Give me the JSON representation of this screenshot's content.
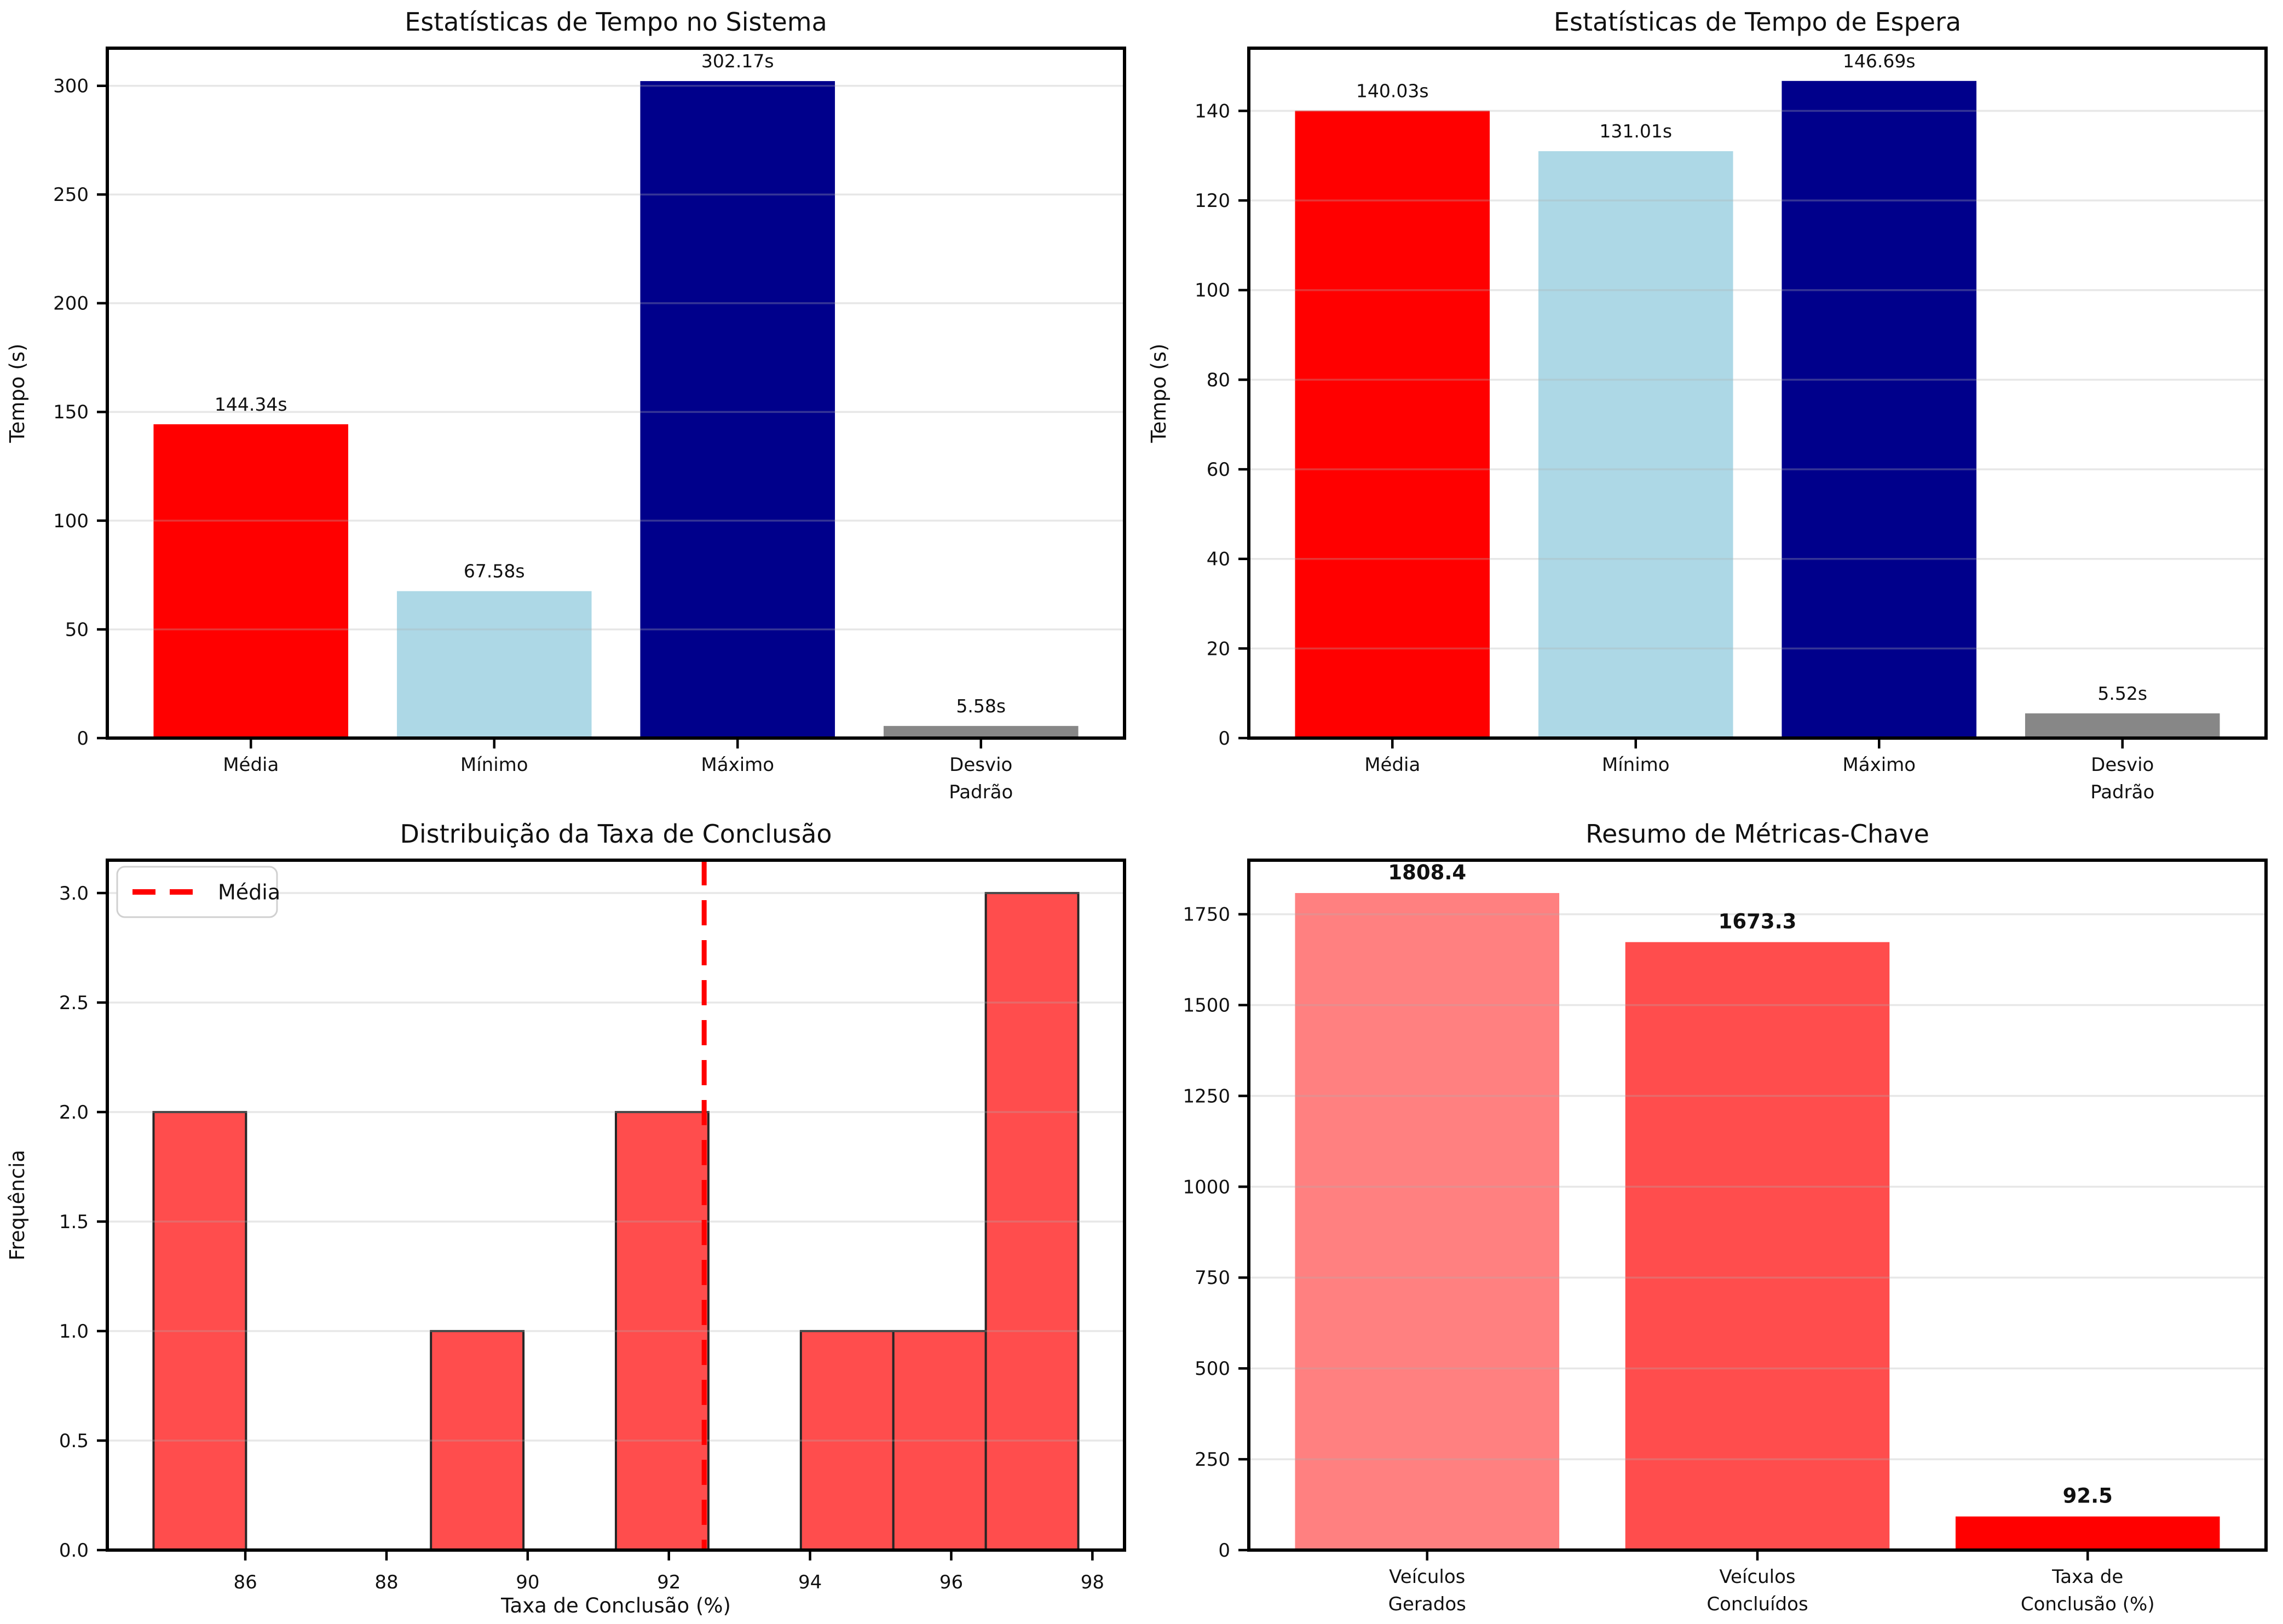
{
  "figure": {
    "background": "#ffffff"
  },
  "style": {
    "grid_color": "#b0b0b0",
    "grid_opacity": 0.3,
    "spine_color": "#000000",
    "text_color": "#111111",
    "legend_border_color": "#d0d0d0",
    "legend_background": "#ffffff"
  },
  "chart_data": [
    {
      "id": "tempo-sistema",
      "type": "bar",
      "title": "Estatísticas de Tempo no Sistema",
      "ylabel": "Tempo (s)",
      "xlabel": "",
      "categories": [
        "Média",
        "Mínimo",
        "Máximo",
        "Desvio\nPadrão"
      ],
      "values": [
        144.34,
        67.58,
        302.17,
        5.58
      ],
      "bar_labels": [
        "144.34s",
        "67.58s",
        "302.17s",
        "5.58s"
      ],
      "bar_label_bold": false,
      "bar_colors": [
        "#ff0000",
        "#add8e6",
        "#00008b",
        "#878787"
      ],
      "ylim": [
        0,
        317.3
      ],
      "ytick_values": [
        0,
        50,
        100,
        150,
        200,
        250,
        300
      ],
      "ytick_labels": [
        "0",
        "50",
        "100",
        "150",
        "200",
        "250",
        "300"
      ],
      "grid": true
    },
    {
      "id": "tempo-espera",
      "type": "bar",
      "title": "Estatísticas de Tempo de Espera",
      "ylabel": "Tempo (s)",
      "xlabel": "",
      "categories": [
        "Média",
        "Mínimo",
        "Máximo",
        "Desvio\nPadrão"
      ],
      "values": [
        140.03,
        131.01,
        146.69,
        5.52
      ],
      "bar_labels": [
        "140.03s",
        "131.01s",
        "146.69s",
        "5.52s"
      ],
      "bar_label_bold": false,
      "bar_colors": [
        "#ff0000",
        "#add8e6",
        "#00008b",
        "#878787"
      ],
      "ylim": [
        0,
        154.0
      ],
      "ytick_values": [
        0,
        20,
        40,
        60,
        80,
        100,
        120,
        140
      ],
      "ytick_labels": [
        "0",
        "20",
        "40",
        "60",
        "80",
        "100",
        "120",
        "140"
      ],
      "grid": true
    },
    {
      "id": "taxa-conclusao-hist",
      "type": "histogram",
      "title": "Distribuição da Taxa de Conclusão",
      "ylabel": "Frequência",
      "xlabel": "Taxa de Conclusão (%)",
      "bin_start": 84.7,
      "bin_width": 1.31,
      "counts": [
        2,
        0,
        0,
        1,
        0,
        2,
        0,
        1,
        1,
        3
      ],
      "bar_color": "#ff4d4d",
      "bar_edge_color": "#262626",
      "mean_value": 92.5,
      "mean_line_color": "#ff0000",
      "legend": {
        "label": "Média",
        "line_color": "#ff0000"
      },
      "xlim": [
        84.045,
        98.455
      ],
      "ylim": [
        0,
        3.15
      ],
      "xtick_values": [
        86,
        88,
        90,
        92,
        94,
        96,
        98
      ],
      "xtick_labels": [
        "86",
        "88",
        "90",
        "92",
        "94",
        "96",
        "98"
      ],
      "ytick_values": [
        0,
        0.5,
        1.0,
        1.5,
        2.0,
        2.5,
        3.0
      ],
      "ytick_labels": [
        "0.0",
        "0.5",
        "1.0",
        "1.5",
        "2.0",
        "2.5",
        "3.0"
      ],
      "grid": true
    },
    {
      "id": "metricas-chave",
      "type": "bar",
      "title": "Resumo de Métricas-Chave",
      "ylabel": "",
      "xlabel": "",
      "categories": [
        "Veículos\nGerados",
        "Veículos\nConcluídos",
        "Taxa de\nConclusão (%)"
      ],
      "values": [
        1808.4,
        1673.3,
        92.5
      ],
      "bar_labels": [
        "1808.4",
        "1673.3",
        "92.5"
      ],
      "bar_label_bold": true,
      "bar_colors": [
        "#ff8080",
        "#ff4d4d",
        "#ff0000"
      ],
      "ylim": [
        0,
        1898.8
      ],
      "ytick_values": [
        0,
        250,
        500,
        750,
        1000,
        1250,
        1500,
        1750
      ],
      "ytick_labels": [
        "0",
        "250",
        "500",
        "750",
        "1000",
        "1250",
        "1500",
        "1750"
      ],
      "grid": true
    }
  ]
}
